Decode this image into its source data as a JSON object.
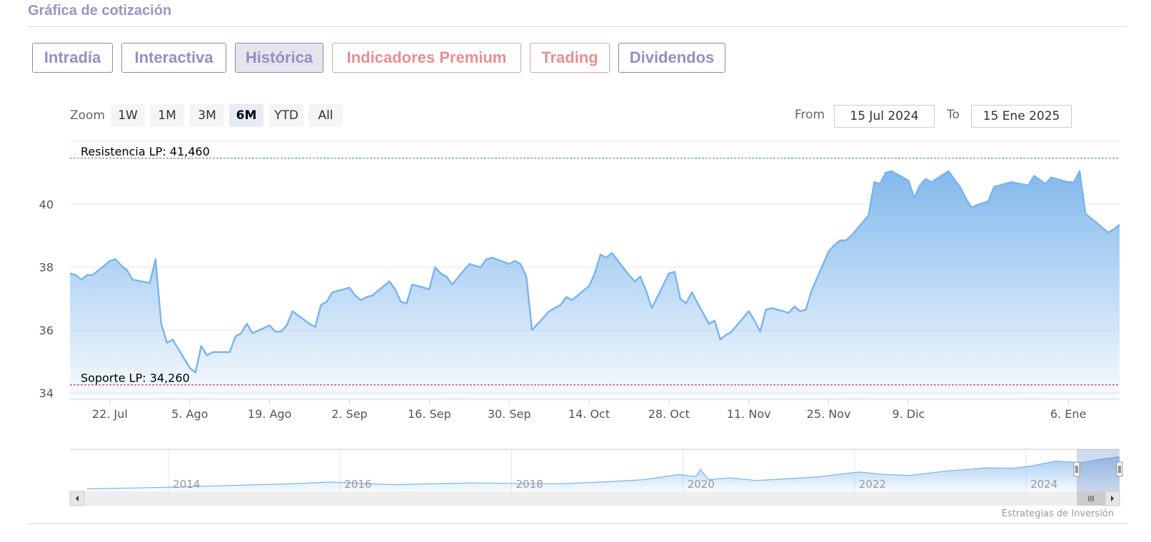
{
  "page": {
    "title": "Gráfica de cotización"
  },
  "tabs": [
    {
      "label": "Intradía",
      "state": "normal"
    },
    {
      "label": "Interactiva",
      "state": "normal"
    },
    {
      "label": "Histórica",
      "state": "active"
    },
    {
      "label": "Indicadores Premium",
      "state": "premium"
    },
    {
      "label": "Trading",
      "state": "premium"
    },
    {
      "label": "Dividendos",
      "state": "normal"
    }
  ],
  "toolbar": {
    "zoom_label": "Zoom",
    "zoom_buttons": [
      "1W",
      "1M",
      "3M",
      "6M",
      "YTD",
      "All"
    ],
    "zoom_selected": "6M",
    "from_label": "From",
    "from_value": "15 Jul 2024",
    "to_label": "To",
    "to_value": "15 Ene 2025"
  },
  "chart_data": {
    "type": "area",
    "y_ticks": [
      34,
      36,
      38,
      40
    ],
    "ylim": [
      33.8,
      42.0
    ],
    "x_ticks": [
      {
        "label": "22. Jul",
        "date": "2024-07-22"
      },
      {
        "label": "5. Ago",
        "date": "2024-08-05"
      },
      {
        "label": "19. Ago",
        "date": "2024-08-19"
      },
      {
        "label": "2. Sep",
        "date": "2024-09-02"
      },
      {
        "label": "16. Sep",
        "date": "2024-09-16"
      },
      {
        "label": "30. Sep",
        "date": "2024-09-30"
      },
      {
        "label": "14. Oct",
        "date": "2024-10-14"
      },
      {
        "label": "28. Oct",
        "date": "2024-10-28"
      },
      {
        "label": "11. Nov",
        "date": "2024-11-11"
      },
      {
        "label": "25. Nov",
        "date": "2024-11-25"
      },
      {
        "label": "9. Dic",
        "date": "2024-12-09"
      },
      {
        "label": "6. Ene",
        "date": "2025-01-06"
      }
    ],
    "xlim": [
      "2024-07-15",
      "2025-01-15"
    ],
    "series": [
      {
        "color": "#7cb5ec",
        "points": [
          [
            "2024-07-15",
            37.8
          ],
          [
            "2024-07-16",
            37.75
          ],
          [
            "2024-07-17",
            37.6
          ],
          [
            "2024-07-18",
            37.75
          ],
          [
            "2024-07-19",
            37.75
          ],
          [
            "2024-07-22",
            38.2
          ],
          [
            "2024-07-23",
            38.25
          ],
          [
            "2024-07-24",
            38.05
          ],
          [
            "2024-07-25",
            37.9
          ],
          [
            "2024-07-26",
            37.6
          ],
          [
            "2024-07-29",
            37.5
          ],
          [
            "2024-07-30",
            38.25
          ],
          [
            "2024-07-31",
            36.2
          ],
          [
            "2024-08-01",
            35.6
          ],
          [
            "2024-08-02",
            35.7
          ],
          [
            "2024-08-05",
            34.8
          ],
          [
            "2024-08-06",
            34.65
          ],
          [
            "2024-08-07",
            35.5
          ],
          [
            "2024-08-08",
            35.2
          ],
          [
            "2024-08-09",
            35.3
          ],
          [
            "2024-08-12",
            35.3
          ],
          [
            "2024-08-13",
            35.8
          ],
          [
            "2024-08-14",
            35.9
          ],
          [
            "2024-08-15",
            36.2
          ],
          [
            "2024-08-16",
            35.9
          ],
          [
            "2024-08-19",
            36.15
          ],
          [
            "2024-08-20",
            35.95
          ],
          [
            "2024-08-21",
            35.95
          ],
          [
            "2024-08-22",
            36.15
          ],
          [
            "2024-08-23",
            36.6
          ],
          [
            "2024-08-26",
            36.2
          ],
          [
            "2024-08-27",
            36.1
          ],
          [
            "2024-08-28",
            36.8
          ],
          [
            "2024-08-29",
            36.9
          ],
          [
            "2024-08-30",
            37.2
          ],
          [
            "2024-09-02",
            37.35
          ],
          [
            "2024-09-03",
            37.1
          ],
          [
            "2024-09-04",
            36.95
          ],
          [
            "2024-09-05",
            37.05
          ],
          [
            "2024-09-06",
            37.1
          ],
          [
            "2024-09-09",
            37.55
          ],
          [
            "2024-09-10",
            37.3
          ],
          [
            "2024-09-11",
            36.9
          ],
          [
            "2024-09-12",
            36.85
          ],
          [
            "2024-09-13",
            37.45
          ],
          [
            "2024-09-16",
            37.3
          ],
          [
            "2024-09-17",
            38.0
          ],
          [
            "2024-09-18",
            37.8
          ],
          [
            "2024-09-19",
            37.7
          ],
          [
            "2024-09-20",
            37.45
          ],
          [
            "2024-09-23",
            38.1
          ],
          [
            "2024-09-24",
            38.05
          ],
          [
            "2024-09-25",
            38.0
          ],
          [
            "2024-09-26",
            38.25
          ],
          [
            "2024-09-27",
            38.3
          ],
          [
            "2024-09-30",
            38.1
          ],
          [
            "2024-10-01",
            38.2
          ],
          [
            "2024-10-02",
            38.1
          ],
          [
            "2024-10-03",
            37.7
          ],
          [
            "2024-10-04",
            36.0
          ],
          [
            "2024-10-07",
            36.6
          ],
          [
            "2024-10-08",
            36.7
          ],
          [
            "2024-10-09",
            36.8
          ],
          [
            "2024-10-10",
            37.05
          ],
          [
            "2024-10-11",
            36.95
          ],
          [
            "2024-10-14",
            37.4
          ],
          [
            "2024-10-15",
            37.8
          ],
          [
            "2024-10-16",
            38.4
          ],
          [
            "2024-10-17",
            38.3
          ],
          [
            "2024-10-18",
            38.45
          ],
          [
            "2024-10-21",
            37.75
          ],
          [
            "2024-10-22",
            37.55
          ],
          [
            "2024-10-23",
            37.7
          ],
          [
            "2024-10-24",
            37.25
          ],
          [
            "2024-10-25",
            36.7
          ],
          [
            "2024-10-28",
            37.8
          ],
          [
            "2024-10-29",
            37.85
          ],
          [
            "2024-10-30",
            37.0
          ],
          [
            "2024-10-31",
            36.85
          ],
          [
            "2024-11-01",
            37.2
          ],
          [
            "2024-11-04",
            36.2
          ],
          [
            "2024-11-05",
            36.3
          ],
          [
            "2024-11-06",
            35.7
          ],
          [
            "2024-11-07",
            35.85
          ],
          [
            "2024-11-08",
            35.95
          ],
          [
            "2024-11-11",
            36.6
          ],
          [
            "2024-11-12",
            36.3
          ],
          [
            "2024-11-13",
            35.95
          ],
          [
            "2024-11-14",
            36.65
          ],
          [
            "2024-11-15",
            36.7
          ],
          [
            "2024-11-18",
            36.55
          ],
          [
            "2024-11-19",
            36.75
          ],
          [
            "2024-11-20",
            36.6
          ],
          [
            "2024-11-21",
            36.65
          ],
          [
            "2024-11-22",
            37.25
          ],
          [
            "2024-11-25",
            38.5
          ],
          [
            "2024-11-26",
            38.7
          ],
          [
            "2024-11-27",
            38.85
          ],
          [
            "2024-11-28",
            38.85
          ],
          [
            "2024-11-29",
            39.0
          ],
          [
            "2024-12-02",
            39.65
          ],
          [
            "2024-12-03",
            40.7
          ],
          [
            "2024-12-04",
            40.65
          ],
          [
            "2024-12-05",
            41.0
          ],
          [
            "2024-12-06",
            41.05
          ],
          [
            "2024-12-09",
            40.75
          ],
          [
            "2024-12-10",
            40.2
          ],
          [
            "2024-12-11",
            40.6
          ],
          [
            "2024-12-12",
            40.8
          ],
          [
            "2024-12-13",
            40.7
          ],
          [
            "2024-12-16",
            41.05
          ],
          [
            "2024-12-17",
            40.8
          ],
          [
            "2024-12-18",
            40.55
          ],
          [
            "2024-12-19",
            40.2
          ],
          [
            "2024-12-20",
            39.9
          ],
          [
            "2024-12-23",
            40.1
          ],
          [
            "2024-12-24",
            40.55
          ],
          [
            "2024-12-26",
            40.65
          ],
          [
            "2024-12-27",
            40.7
          ],
          [
            "2024-12-30",
            40.6
          ],
          [
            "2024-12-31",
            40.9
          ],
          [
            "2025-01-02",
            40.65
          ],
          [
            "2025-01-03",
            40.85
          ],
          [
            "2025-01-06",
            40.7
          ],
          [
            "2025-01-07",
            40.7
          ],
          [
            "2025-01-08",
            41.05
          ],
          [
            "2025-01-09",
            39.7
          ],
          [
            "2025-01-10",
            39.55
          ],
          [
            "2025-01-13",
            39.1
          ],
          [
            "2025-01-14",
            39.2
          ],
          [
            "2025-01-15",
            39.35
          ]
        ]
      }
    ],
    "plot_lines": [
      {
        "label": "Resistencia LP: 41,460",
        "value": 41.46,
        "color": "#339933"
      },
      {
        "label": "Soporte LP: 34,260",
        "value": 34.26,
        "color": "#aa2222"
      }
    ],
    "grid": true,
    "navigator": {
      "year_labels": [
        "2014",
        "2016",
        "2018",
        "2020",
        "2022",
        "2024"
      ],
      "points": [
        [
          2013.0,
          0.06
        ],
        [
          2013.5,
          0.08
        ],
        [
          2014.0,
          0.1
        ],
        [
          2014.5,
          0.13
        ],
        [
          2015.0,
          0.16
        ],
        [
          2015.4,
          0.18
        ],
        [
          2015.8,
          0.22
        ],
        [
          2016.0,
          0.21
        ],
        [
          2016.3,
          0.18
        ],
        [
          2016.6,
          0.16
        ],
        [
          2017.0,
          0.18
        ],
        [
          2017.5,
          0.2
        ],
        [
          2018.0,
          0.19
        ],
        [
          2018.5,
          0.18
        ],
        [
          2019.0,
          0.22
        ],
        [
          2019.5,
          0.28
        ],
        [
          2019.9,
          0.4
        ],
        [
          2020.1,
          0.35
        ],
        [
          2020.15,
          0.52
        ],
        [
          2020.25,
          0.28
        ],
        [
          2020.5,
          0.32
        ],
        [
          2020.8,
          0.26
        ],
        [
          2021.0,
          0.28
        ],
        [
          2021.5,
          0.34
        ],
        [
          2022.0,
          0.46
        ],
        [
          2022.3,
          0.4
        ],
        [
          2022.6,
          0.38
        ],
        [
          2023.0,
          0.48
        ],
        [
          2023.5,
          0.56
        ],
        [
          2023.8,
          0.55
        ],
        [
          2024.0,
          0.6
        ],
        [
          2024.3,
          0.72
        ],
        [
          2024.6,
          0.68
        ],
        [
          2024.8,
          0.76
        ],
        [
          2025.04,
          0.82
        ]
      ],
      "xlim": [
        2012.8,
        2025.04
      ],
      "selected_range": [
        2024.54,
        2025.04
      ]
    },
    "credits": "Estrategias de Inversión"
  }
}
